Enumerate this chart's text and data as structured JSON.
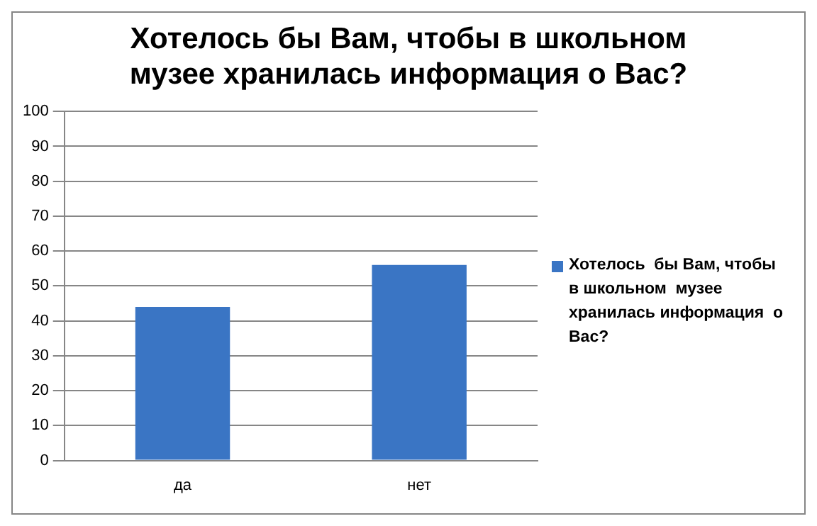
{
  "chart_data": {
    "type": "bar",
    "title": "Хотелось бы Вам, чтобы в школьном музее хранилась информация  о Вас?",
    "categories": [
      "да",
      "нет"
    ],
    "series": [
      {
        "name": "Хотелось  бы Вам, чтобы  в школьном  музее хранилась информация  о Вас?",
        "color": "#3a75c4",
        "values": [
          44,
          56
        ]
      }
    ],
    "ylim": [
      0,
      100
    ],
    "yticks": [
      0,
      10,
      20,
      30,
      40,
      50,
      60,
      70,
      80,
      90,
      100
    ],
    "grid": "y",
    "legend": "right"
  }
}
